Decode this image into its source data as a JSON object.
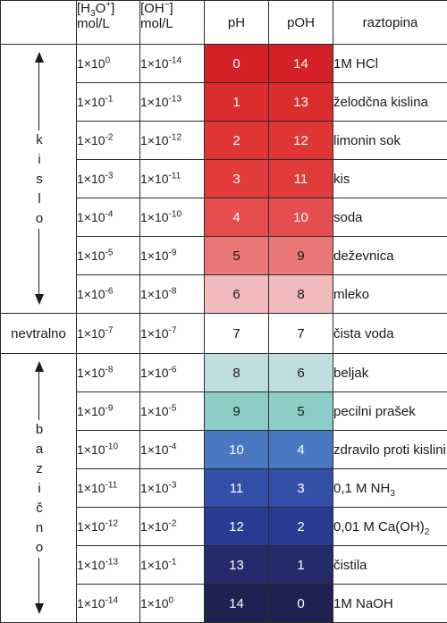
{
  "header": {
    "h3o": {
      "open": "[H",
      "sub": "3",
      "mid": "O",
      "sup": "+",
      "close": "]",
      "unit": "mol/L"
    },
    "oh": {
      "open": "[OH",
      "sup": "−",
      "close": "]",
      "unit": "mol/L"
    },
    "ph": "pH",
    "poh": "pOH",
    "solution": "raztopina"
  },
  "zones": {
    "acid_letters": [
      "k",
      "i",
      "s",
      "l",
      "o"
    ],
    "neutral": "nevtralno",
    "base_letters": [
      "b",
      "a",
      "z",
      "i",
      "č",
      "n",
      "o"
    ]
  },
  "base10": "1×10",
  "rows": [
    {
      "h_exp": "0",
      "oh_exp": "-14",
      "ph": "0",
      "poh": "14",
      "color": "#d42027",
      "text_color": "#ffffff",
      "solution": "1M HCl"
    },
    {
      "h_exp": "-1",
      "oh_exp": "-13",
      "ph": "1",
      "poh": "13",
      "color": "#dc2d2d",
      "text_color": "#ffffff",
      "solution": "želodčna kislina"
    },
    {
      "h_exp": "-2",
      "oh_exp": "-12",
      "ph": "2",
      "poh": "12",
      "color": "#e03535",
      "text_color": "#ffffff",
      "solution": "limonin sok"
    },
    {
      "h_exp": "-3",
      "oh_exp": "-11",
      "ph": "3",
      "poh": "11",
      "color": "#e23b3b",
      "text_color": "#ffffff",
      "solution": "kis"
    },
    {
      "h_exp": "-4",
      "oh_exp": "-10",
      "ph": "4",
      "poh": "10",
      "color": "#e54d4f",
      "text_color": "#ffffff",
      "solution": "soda"
    },
    {
      "h_exp": "-5",
      "oh_exp": "-9",
      "ph": "5",
      "poh": "9",
      "color": "#ec7777",
      "text_color": "#1a1a1a",
      "solution": "deževnica"
    },
    {
      "h_exp": "-6",
      "oh_exp": "-8",
      "ph": "6",
      "poh": "8",
      "color": "#f2bcbf",
      "text_color": "#1a1a1a",
      "solution": "mleko"
    },
    {
      "h_exp": "-7",
      "oh_exp": "-7",
      "ph": "7",
      "poh": "7",
      "color": "#ffffff",
      "text_color": "#1a1a1a",
      "solution": "čista voda"
    },
    {
      "h_exp": "-8",
      "oh_exp": "-6",
      "ph": "8",
      "poh": "6",
      "color": "#c0dde0",
      "text_color": "#1a1a1a",
      "solution": "beljak"
    },
    {
      "h_exp": "-9",
      "oh_exp": "-5",
      "ph": "9",
      "poh": "5",
      "color": "#8ccdc8",
      "text_color": "#1a1a1a",
      "solution": "pecilni prašek"
    },
    {
      "h_exp": "-10",
      "oh_exp": "-4",
      "ph": "10",
      "poh": "4",
      "color": "#4a78c2",
      "text_color": "#ffffff",
      "solution": "zdravilo proti kislini"
    },
    {
      "h_exp": "-11",
      "oh_exp": "-3",
      "ph": "11",
      "poh": "3",
      "color": "#3250a8",
      "text_color": "#ffffff",
      "solution": "0,1 M NH",
      "solution_sub": "3",
      "solution_tail": ""
    },
    {
      "h_exp": "-12",
      "oh_exp": "-2",
      "ph": "12",
      "poh": "2",
      "color": "#2a3a92",
      "text_color": "#ffffff",
      "solution": "0,01 M Ca(OH)",
      "solution_sub": "2",
      "solution_tail": ""
    },
    {
      "h_exp": "-13",
      "oh_exp": "-1",
      "ph": "13",
      "poh": "1",
      "color": "#242a6a",
      "text_color": "#ffffff",
      "solution": "čistila"
    },
    {
      "h_exp": "-14",
      "oh_exp": "0",
      "ph": "14",
      "poh": "0",
      "color": "#1e2250",
      "text_color": "#ffffff",
      "solution": "1M NaOH"
    }
  ]
}
